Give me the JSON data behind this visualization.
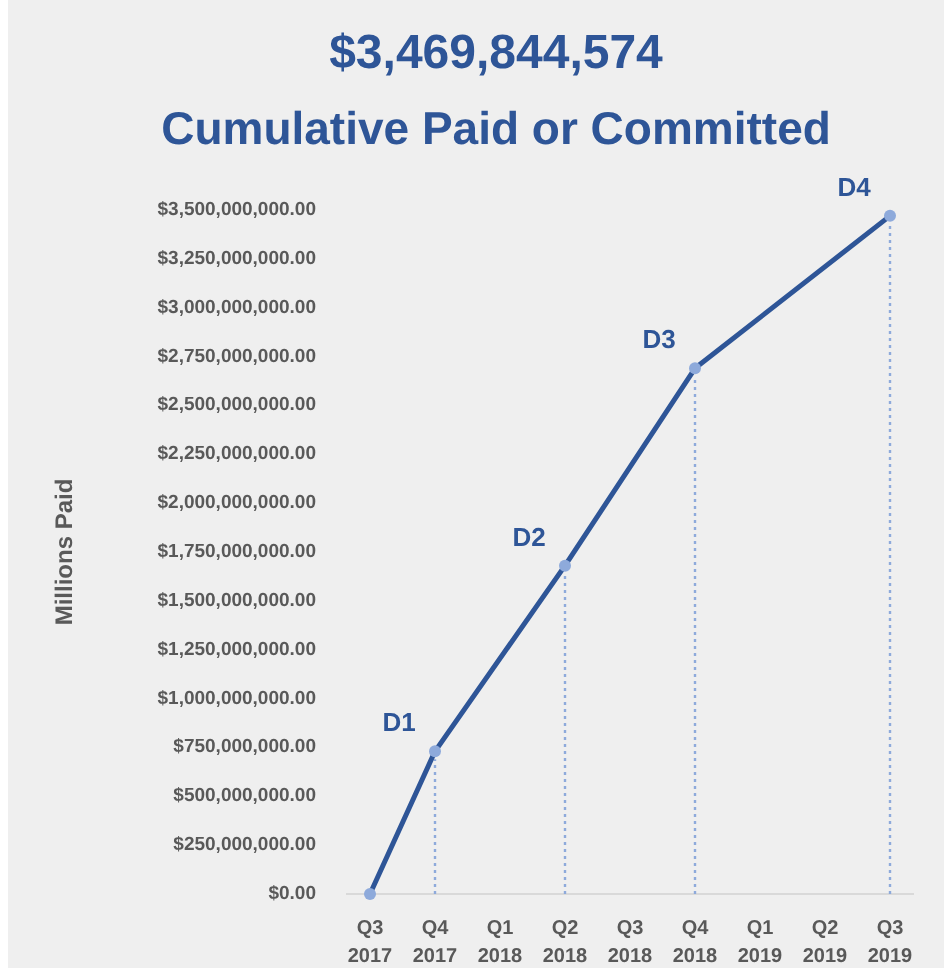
{
  "chart_data": {
    "type": "line",
    "title": "$3,469,844,574",
    "subtitle": "Cumulative Paid or Committed",
    "ylabel": "Millions Paid",
    "categories": [
      "Q3 2017",
      "Q4 2017",
      "Q1 2018",
      "Q2 2018",
      "Q3 2018",
      "Q4 2018",
      "Q1 2019",
      "Q2 2019",
      "Q3 2019"
    ],
    "series": [
      {
        "color": "#2e5597",
        "values": [
          0,
          730000000,
          null,
          1680000000,
          null,
          2690000000,
          null,
          null,
          3470000000
        ]
      }
    ],
    "ylim": [
      0,
      3500000000
    ],
    "yticks": [
      {
        "value": 0,
        "label": "$0.00"
      },
      {
        "value": 250000000,
        "label": "$250,000,000.00"
      },
      {
        "value": 500000000,
        "label": "$500,000,000.00"
      },
      {
        "value": 750000000,
        "label": "$750,000,000.00"
      },
      {
        "value": 1000000000,
        "label": "$1,000,000,000.00"
      },
      {
        "value": 1250000000,
        "label": "$1,250,000,000.00"
      },
      {
        "value": 1500000000,
        "label": "$1,500,000,000.00"
      },
      {
        "value": 1750000000,
        "label": "$1,750,000,000.00"
      },
      {
        "value": 2000000000,
        "label": "$2,000,000,000.00"
      },
      {
        "value": 2250000000,
        "label": "$2,250,000,000.00"
      },
      {
        "value": 2500000000,
        "label": "$2,500,000,000.00"
      },
      {
        "value": 2750000000,
        "label": "$2,750,000,000.00"
      },
      {
        "value": 3000000000,
        "label": "$3,000,000,000.00"
      },
      {
        "value": 3250000000,
        "label": "$3,250,000,000.00"
      },
      {
        "value": 3500000000,
        "label": "$3,500,000,000.00"
      }
    ],
    "grid": false,
    "marker": "circle",
    "line_style": "solid",
    "ref_lines": [
      {
        "axis": "x",
        "value": "Q4 2017",
        "line_style": "dotted",
        "color": "#8eaadb"
      },
      {
        "axis": "x",
        "value": "Q2 2018",
        "line_style": "dotted",
        "color": "#8eaadb"
      },
      {
        "axis": "x",
        "value": "Q4 2018",
        "line_style": "dotted",
        "color": "#8eaadb"
      },
      {
        "axis": "x",
        "value": "Q3 2019",
        "line_style": "dotted",
        "color": "#8eaadb"
      }
    ],
    "annotations": [
      {
        "text": "D1",
        "x": "Q4 2017",
        "y": 730000000
      },
      {
        "text": "D2",
        "x": "Q2 2018",
        "y": 1680000000
      },
      {
        "text": "D3",
        "x": "Q4 2018",
        "y": 2690000000
      },
      {
        "text": "D4",
        "x": "Q3 2019",
        "y": 3470000000
      }
    ]
  }
}
